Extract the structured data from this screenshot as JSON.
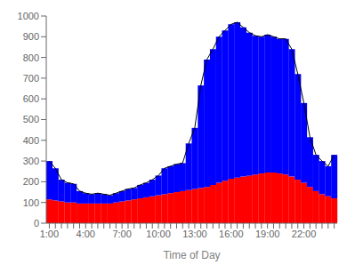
{
  "chart_data": {
    "type": "bar",
    "stacked": true,
    "xlabel": "Time of Day",
    "categories": [
      "1:00",
      null,
      null,
      null,
      null,
      null,
      "4:00",
      null,
      null,
      null,
      null,
      null,
      "7:00",
      null,
      null,
      null,
      null,
      null,
      "10:00",
      null,
      null,
      null,
      null,
      null,
      "13:00",
      null,
      null,
      null,
      null,
      null,
      "16:00",
      null,
      null,
      null,
      null,
      null,
      "19:00",
      null,
      null,
      null,
      null,
      null,
      "22:00",
      null,
      null,
      null,
      null,
      null
    ],
    "series": [
      {
        "color": "#ff0000",
        "values": [
          115,
          110,
          105,
          100,
          100,
          95,
          95,
          95,
          95,
          95,
          95,
          100,
          105,
          110,
          115,
          120,
          125,
          130,
          135,
          140,
          145,
          150,
          155,
          160,
          165,
          170,
          175,
          185,
          195,
          205,
          215,
          220,
          225,
          230,
          235,
          240,
          245,
          245,
          240,
          235,
          225,
          210,
          195,
          175,
          155,
          140,
          130,
          120
        ]
      },
      {
        "color": "#0000ff",
        "values": [
          185,
          155,
          105,
          95,
          90,
          60,
          50,
          45,
          50,
          45,
          40,
          45,
          50,
          55,
          55,
          65,
          70,
          80,
          95,
          125,
          130,
          135,
          135,
          225,
          295,
          495,
          615,
          655,
          705,
          725,
          745,
          750,
          720,
          690,
          670,
          660,
          665,
          655,
          650,
          655,
          615,
          510,
          385,
          240,
          175,
          160,
          145,
          210
        ]
      },
      {
        "type": "line",
        "color": "#000000",
        "values": [
          300,
          265,
          210,
          195,
          190,
          155,
          145,
          140,
          145,
          140,
          135,
          145,
          155,
          165,
          170,
          185,
          195,
          210,
          230,
          265,
          275,
          285,
          290,
          385,
          460,
          665,
          790,
          840,
          900,
          930,
          960,
          970,
          945,
          920,
          905,
          900,
          910,
          900,
          890,
          890,
          840,
          720,
          580,
          415,
          330,
          300,
          275,
          330
        ]
      }
    ],
    "ylim": [
      0,
      1000
    ],
    "yticks": [
      0,
      100,
      200,
      300,
      400,
      500,
      600,
      700,
      800,
      900,
      1000
    ]
  }
}
